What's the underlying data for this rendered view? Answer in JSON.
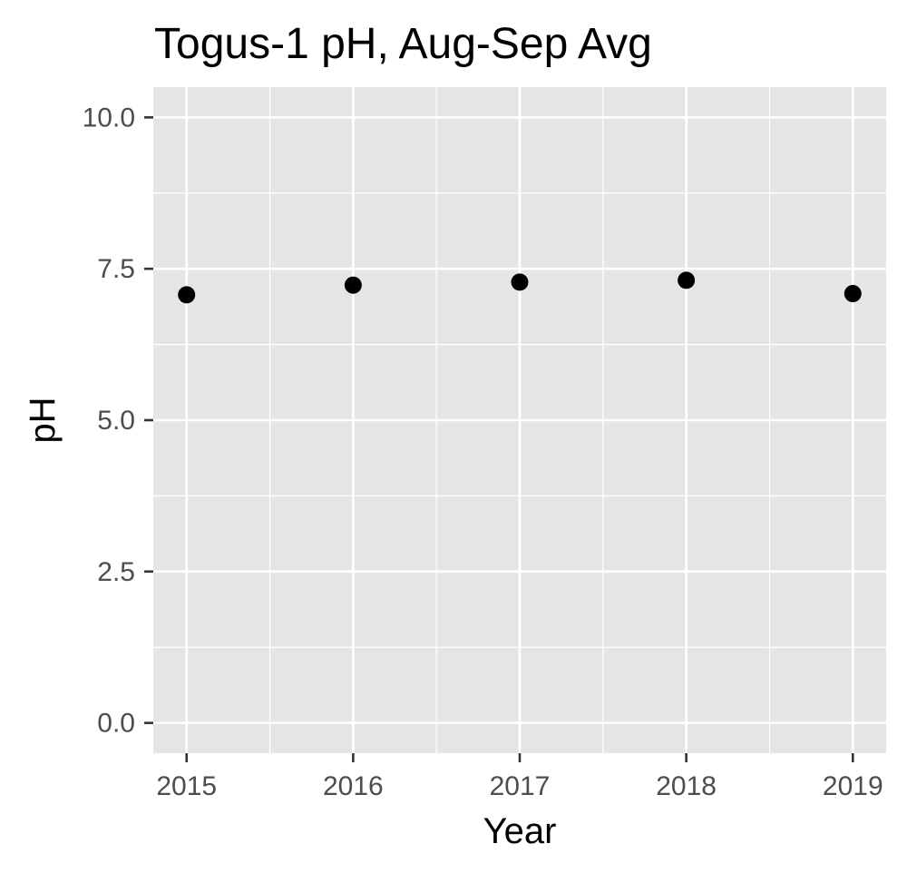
{
  "chart_data": {
    "type": "scatter",
    "title": "Togus-1 pH, Aug-Sep Avg",
    "xlabel": "Year",
    "ylabel": "pH",
    "x": [
      2015,
      2016,
      2017,
      2018,
      2019
    ],
    "y": [
      7.07,
      7.23,
      7.28,
      7.31,
      7.09
    ],
    "x_ticks": [
      "2015",
      "2016",
      "2017",
      "2018",
      "2019"
    ],
    "y_ticks": [
      "0.0",
      "2.5",
      "5.0",
      "7.5",
      "10.0"
    ],
    "ylim": [
      -0.5,
      10.5
    ],
    "xlim": [
      2014.8,
      2019.2
    ],
    "grid": true,
    "colors": {
      "panel": "#e5e5e5",
      "grid": "#ffffff",
      "point": "#000000",
      "tick": "#333333"
    }
  }
}
